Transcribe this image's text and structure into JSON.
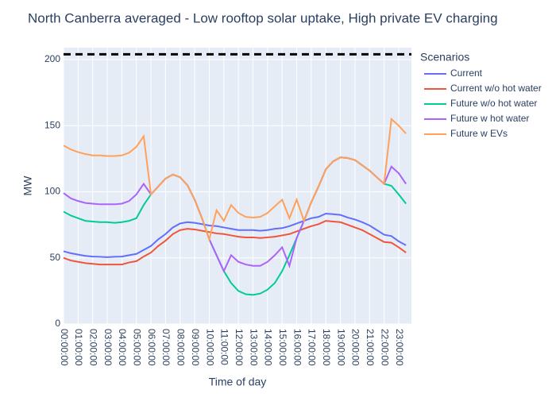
{
  "chart_data": {
    "type": "line",
    "title": "North Canberra averaged - Low rooftop solar uptake, High private EV charging",
    "x_label": "Time of day",
    "y_label": "MW",
    "legend_title": "Scenarios",
    "categories": [
      "00:00:00",
      null,
      "01:00:00",
      null,
      "02:00:00",
      null,
      "03:00:00",
      null,
      "04:00:00",
      null,
      "05:00:00",
      null,
      "06:00:00",
      null,
      "07:00:00",
      null,
      "08:00:00",
      null,
      "09:00:00",
      null,
      "10:00:00",
      null,
      "11:00:00",
      null,
      "12:00:00",
      null,
      "13:00:00",
      null,
      "14:00:00",
      null,
      "15:00:00",
      null,
      "16:00:00",
      null,
      "17:00:00",
      null,
      "18:00:00",
      null,
      "19:00:00",
      null,
      "20:00:00",
      null,
      "21:00:00",
      null,
      "22:00:00",
      null,
      "23:00:00",
      null
    ],
    "ylim": [
      0,
      209
    ],
    "yticks": [
      0,
      50,
      100,
      150,
      200
    ],
    "grid": true,
    "hline": {
      "value": 204,
      "color": "#000000"
    },
    "series": [
      {
        "name": "Current",
        "color": "#636efa",
        "values": [
          55,
          53.5,
          52.5,
          51.5,
          51,
          50.8,
          50.5,
          50.8,
          51,
          52,
          53,
          56,
          59,
          64,
          68,
          73,
          76,
          77,
          76.5,
          75.5,
          74.5,
          74,
          73,
          72,
          71,
          71,
          71,
          70.5,
          71,
          72,
          72.5,
          74,
          76,
          78,
          80,
          81,
          83.5,
          83,
          82.5,
          80.5,
          79,
          77,
          74.5,
          71,
          67.5,
          66.5,
          62.5,
          59.5
        ]
      },
      {
        "name": "Current w/o hot water",
        "color": "#ef553b",
        "values": [
          50,
          48,
          47,
          46,
          45.5,
          45,
          45,
          45,
          45,
          46.5,
          47.5,
          51,
          54,
          59,
          63,
          68,
          71,
          72,
          71.5,
          70.5,
          69.5,
          68.5,
          68,
          67,
          66,
          65.5,
          65.5,
          65,
          65.5,
          66,
          67,
          68,
          70,
          72,
          74,
          75.5,
          78,
          77.5,
          77,
          75,
          73,
          71,
          68,
          65,
          62,
          61.5,
          58,
          54
        ]
      },
      {
        "name": "Future w/o hot water",
        "color": "#00cc96",
        "values": [
          85,
          82,
          80,
          78,
          77.5,
          77,
          77,
          76.5,
          77,
          78,
          80,
          90,
          98,
          104,
          110,
          113,
          111,
          105,
          94,
          80,
          64,
          52,
          40,
          31,
          25,
          22.5,
          22,
          23,
          26,
          31,
          40,
          52,
          65,
          78,
          92,
          104,
          117,
          123,
          126,
          125.5,
          124,
          120,
          116,
          111,
          106,
          104.5,
          98,
          91
        ]
      },
      {
        "name": "Future w hot water",
        "color": "#ab63fa",
        "values": [
          99,
          95,
          93,
          91.5,
          91,
          90.5,
          90.5,
          90.5,
          91,
          93,
          98,
          106,
          98,
          104,
          110,
          113,
          111,
          105,
          94,
          80,
          64,
          52,
          40,
          52,
          47,
          45,
          44,
          44,
          47,
          52,
          58,
          44,
          65,
          78,
          92,
          104,
          117,
          123,
          126,
          125.5,
          124,
          120,
          116,
          111,
          106,
          119,
          114,
          106
        ]
      },
      {
        "name": "Future w EVs",
        "color": "#ffa15a",
        "values": [
          135,
          132,
          130,
          128.5,
          127.5,
          127.5,
          127,
          127,
          127.5,
          129.5,
          134,
          142,
          98,
          104,
          110,
          113,
          111,
          105,
          94,
          80,
          64,
          86,
          78,
          90,
          84,
          81,
          80.5,
          81,
          84,
          89,
          94,
          80,
          94,
          78,
          92,
          104,
          117,
          123,
          126,
          125.5,
          124,
          120,
          116,
          111,
          106,
          155,
          150,
          144
        ]
      }
    ]
  }
}
